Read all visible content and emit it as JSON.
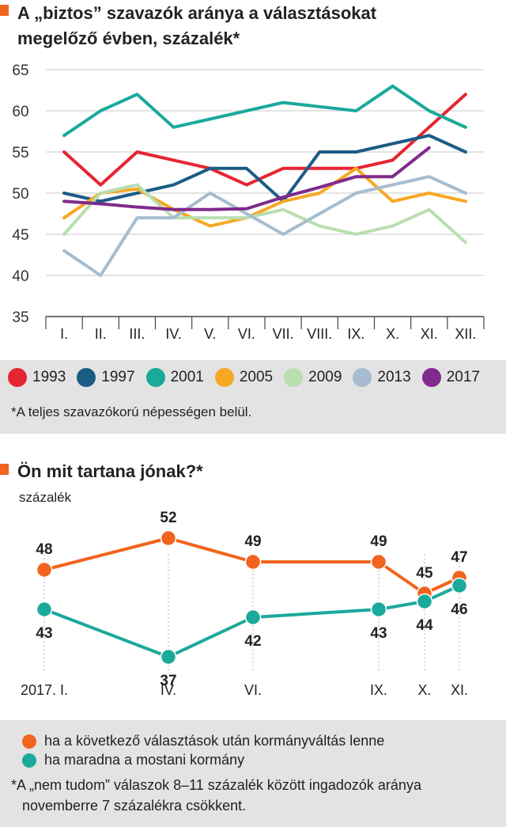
{
  "chart1": {
    "title_line1": "A „biztos” szavazók aránya a választásokat",
    "title_line2": "megelőző évben, százalék*",
    "title_marker_color": "#f0641e",
    "footnote": "*A teljes szavazókorú népességen belül.",
    "chart_data": {
      "type": "line",
      "x": [
        "I.",
        "II.",
        "III.",
        "IV.",
        "V.",
        "VI.",
        "VII.",
        "VIII.",
        "IX.",
        "X.",
        "XI.",
        "XII."
      ],
      "ylim": [
        35,
        65
      ],
      "yticks": [
        35,
        40,
        45,
        50,
        55,
        60,
        65
      ],
      "grid": true,
      "legend_position": "bottom",
      "series": [
        {
          "name": "1993",
          "color": "#e52531",
          "values": [
            55,
            51,
            55,
            54,
            53,
            51,
            53,
            53,
            53,
            54,
            58,
            62
          ]
        },
        {
          "name": "1997",
          "color": "#1b5c84",
          "values": [
            50,
            49,
            50,
            51,
            53,
            53,
            49,
            55,
            55,
            56,
            57,
            55
          ]
        },
        {
          "name": "2001",
          "color": "#1ba99b",
          "values": [
            57,
            60,
            62,
            58,
            59,
            60,
            61,
            60.5,
            60,
            63,
            60,
            58
          ]
        },
        {
          "name": "2005",
          "color": "#f7a823",
          "values": [
            47,
            50,
            50.5,
            48,
            46,
            47,
            49,
            50,
            53,
            49,
            50,
            49
          ]
        },
        {
          "name": "2009",
          "color": "#b9deb0",
          "values": [
            45,
            50,
            51,
            47,
            47,
            47,
            48,
            46,
            45,
            46,
            48,
            44
          ]
        },
        {
          "name": "2013",
          "color": "#a8bccf",
          "values": [
            43,
            40,
            47,
            47,
            50,
            47.5,
            45,
            47.5,
            50,
            51,
            52,
            50
          ]
        },
        {
          "name": "2017",
          "color": "#7f2a8c",
          "values": [
            49,
            48.7,
            48.3,
            48,
            48,
            48.1,
            49.5,
            50.7,
            52,
            52,
            55.5,
            null
          ]
        }
      ]
    }
  },
  "chart2": {
    "title": "Ön mit tartana jónak?*",
    "title_marker_color": "#f0641e",
    "unit_label": "százalék",
    "legend": [
      {
        "label": "ha a következő választások után kormányváltás lenne",
        "color": "#f0641e"
      },
      {
        "label": "ha maradna a mostani kormány",
        "color": "#1ba99b"
      }
    ],
    "footnote_line1": "*A „nem tudom” válaszok 8–11 százalék között ingadozók aránya",
    "footnote_line2": "novemberre 7 százalékra csökkent.",
    "chart_data": {
      "type": "line",
      "x": [
        "2017. I.",
        "IV.",
        "VI.",
        "IX.",
        "X.",
        "XI."
      ],
      "data_labels": true,
      "grid": true,
      "series": [
        {
          "name": "ha a következő választások után kormányváltás lenne",
          "color": "#f0641e",
          "values": [
            48,
            52,
            49,
            49,
            45,
            47
          ]
        },
        {
          "name": "ha maradna a mostani kormány",
          "color": "#1ba99b",
          "values": [
            43,
            37,
            42,
            43,
            44,
            46
          ]
        }
      ]
    }
  }
}
